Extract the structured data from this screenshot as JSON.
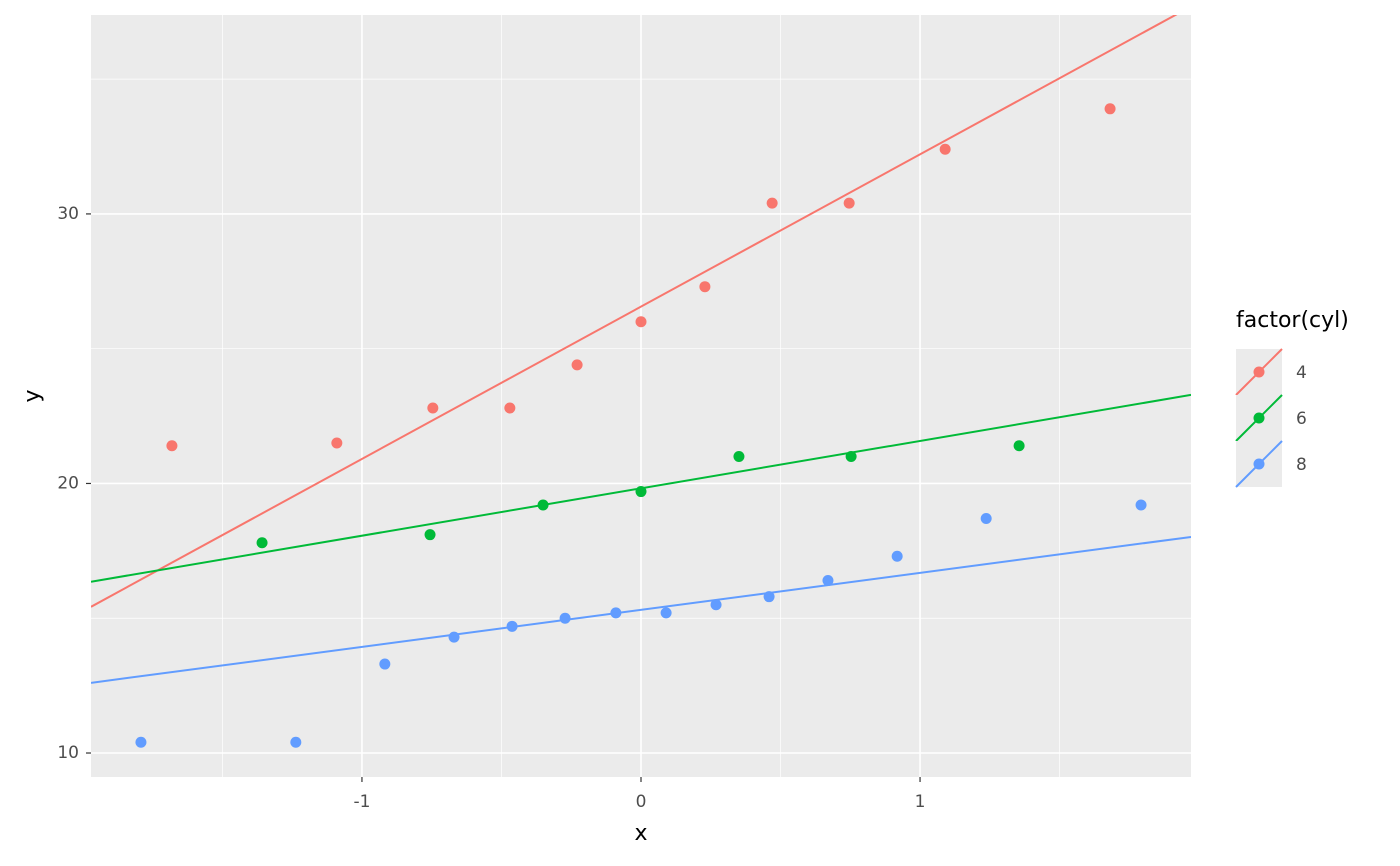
{
  "chart_data": {
    "type": "scatter",
    "x_label": "x",
    "y_label": "y",
    "legend_title": "factor(cyl)",
    "xlim": [
      -1.971,
      1.971
    ],
    "ylim": [
      9.11,
      37.38
    ],
    "xticks": [
      -1,
      0,
      1
    ],
    "yticks": [
      10,
      20,
      30
    ],
    "xminor": [
      -1.5,
      -0.5,
      0.5,
      1.5
    ],
    "yminor": [
      15,
      25,
      35
    ],
    "grid": true,
    "legend": "right",
    "series": [
      {
        "name": "4",
        "color": "#f8766d",
        "x": [
          -1.681,
          -1.09,
          -0.746,
          -0.47,
          -0.229,
          0,
          0.229,
          0.47,
          0.746,
          1.09,
          1.681
        ],
        "values": [
          21.4,
          21.5,
          22.8,
          22.8,
          24.4,
          26.0,
          27.3,
          30.4,
          30.4,
          32.4,
          33.9
        ],
        "fit": {
          "intercept": 26.56,
          "slope": 5.65
        }
      },
      {
        "name": "6",
        "color": "#00ba38",
        "x": [
          -1.358,
          -0.756,
          -0.351,
          0,
          0.351,
          0.753,
          1.355
        ],
        "values": [
          17.8,
          18.1,
          19.2,
          19.7,
          21.0,
          21.0,
          21.4
        ],
        "fit": {
          "intercept": 19.82,
          "slope": 1.758
        }
      },
      {
        "name": "8",
        "color": "#619cff",
        "x": [
          -1.792,
          -1.237,
          -0.918,
          -0.67,
          -0.462,
          -0.272,
          -0.09,
          0.09,
          0.269,
          0.459,
          0.67,
          0.918,
          1.237,
          1.792
        ],
        "values": [
          10.4,
          10.4,
          13.3,
          14.3,
          14.7,
          15.0,
          15.2,
          15.2,
          15.5,
          15.8,
          16.4,
          17.3,
          18.7,
          19.2
        ],
        "fit": {
          "intercept": 15.31,
          "slope": 1.373
        }
      }
    ]
  }
}
